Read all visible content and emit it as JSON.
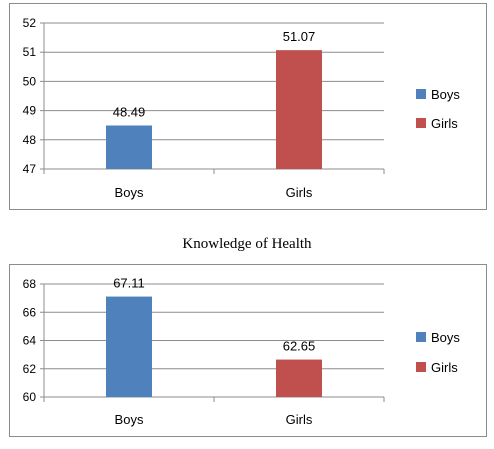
{
  "chart_data": [
    {
      "type": "bar",
      "title": "",
      "categories": [
        "Boys",
        "Girls"
      ],
      "values": [
        48.49,
        51.07
      ],
      "colors": [
        "#4F81BD",
        "#C0504D"
      ],
      "legend": [
        "Boys",
        "Girls"
      ],
      "legend_position": "right",
      "ylim": [
        47,
        52
      ],
      "yticks": [
        "47",
        "48",
        "49",
        "50",
        "51",
        "52"
      ],
      "data_labels": [
        "48.49",
        "51.07"
      ],
      "grid": true
    },
    {
      "type": "bar",
      "title": "Knowledge of Health",
      "categories": [
        "Boys",
        "Girls"
      ],
      "values": [
        67.11,
        62.65
      ],
      "colors": [
        "#4F81BD",
        "#C0504D"
      ],
      "legend": [
        "Boys",
        "Girls"
      ],
      "legend_position": "right",
      "ylim": [
        60,
        68
      ],
      "yticks": [
        "60",
        "62",
        "64",
        "66",
        "68"
      ],
      "data_labels": [
        "67.11",
        "62.65"
      ],
      "grid": true
    }
  ]
}
